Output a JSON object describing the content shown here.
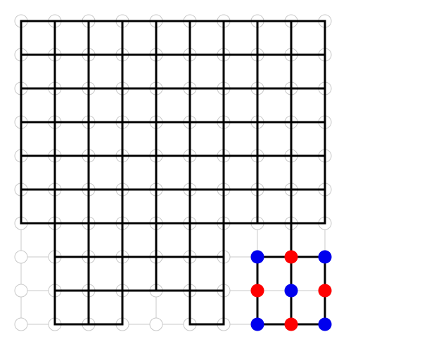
{
  "board": {
    "cols": 10,
    "rows": 10,
    "colors": {
      "grid_guide": "#c8c8c8",
      "node_empty_stroke": "#c8c8c8",
      "edge": "#000000",
      "red": "#ff0000",
      "blue": "#0000ee"
    },
    "edges": [
      [
        0,
        0,
        9,
        0
      ],
      [
        0,
        1,
        9,
        1
      ],
      [
        0,
        2,
        9,
        2
      ],
      [
        0,
        3,
        9,
        3
      ],
      [
        0,
        4,
        9,
        4
      ],
      [
        0,
        5,
        9,
        5
      ],
      [
        0,
        6,
        9,
        6
      ],
      [
        1,
        7,
        6,
        7
      ],
      [
        1,
        8,
        6,
        8
      ],
      [
        1,
        9,
        3,
        9
      ],
      [
        5,
        9,
        6,
        9
      ],
      [
        0,
        0,
        0,
        6
      ],
      [
        1,
        0,
        1,
        9
      ],
      [
        2,
        0,
        2,
        9
      ],
      [
        3,
        0,
        3,
        9
      ],
      [
        4,
        0,
        4,
        8
      ],
      [
        5,
        0,
        5,
        9
      ],
      [
        6,
        0,
        6,
        9
      ],
      [
        7,
        0,
        7,
        6
      ],
      [
        8,
        0,
        8,
        6
      ],
      [
        9,
        0,
        9,
        6
      ],
      [
        7,
        7,
        9,
        7
      ],
      [
        7,
        9,
        9,
        9
      ],
      [
        7,
        7,
        7,
        9
      ],
      [
        9,
        7,
        9,
        9
      ],
      [
        8,
        6,
        8,
        9
      ]
    ],
    "pieces": [
      {
        "c": 7,
        "r": 7,
        "color": "blue"
      },
      {
        "c": 8,
        "r": 7,
        "color": "red"
      },
      {
        "c": 9,
        "r": 7,
        "color": "blue"
      },
      {
        "c": 7,
        "r": 8,
        "color": "red"
      },
      {
        "c": 8,
        "r": 8,
        "color": "blue"
      },
      {
        "c": 9,
        "r": 8,
        "color": "red"
      },
      {
        "c": 7,
        "r": 9,
        "color": "blue"
      },
      {
        "c": 8,
        "r": 9,
        "color": "red"
      },
      {
        "c": 9,
        "r": 9,
        "color": "blue"
      }
    ]
  }
}
